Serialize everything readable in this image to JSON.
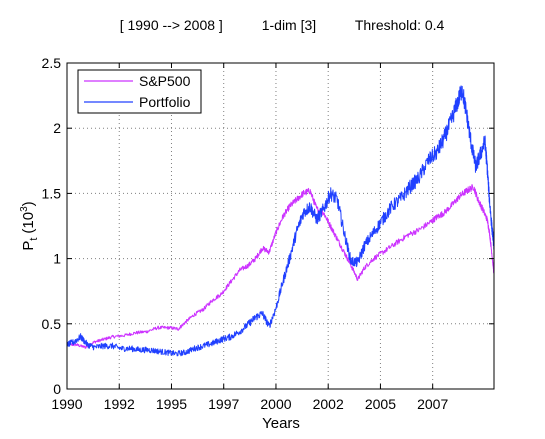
{
  "chart_data": {
    "type": "line",
    "title": "[ 1990 --> 2008 ]          1-dim [3]          Threshold: 0.4",
    "xlabel": "Years",
    "ylabel_main": "P",
    "ylabel_sub": "t",
    "ylabel_paren": "(10",
    "ylabel_sup": "3",
    "ylabel_close": ")",
    "xlim": [
      1990,
      2008.8
    ],
    "ylim": [
      0,
      2.5
    ],
    "xticks": [
      1990,
      1992.3,
      1994.6,
      1996.9,
      1999.2,
      2001.5,
      2003.8,
      2006.1
    ],
    "xtick_labels": [
      "1990",
      "1992",
      "1995",
      "1997",
      "2000",
      "2002",
      "2005",
      "2007"
    ],
    "yticks": [
      0,
      0.5,
      1,
      1.5,
      2,
      2.5
    ],
    "ytick_labels": [
      "0",
      "0.5",
      "1",
      "1.5",
      "2",
      "2.5"
    ],
    "grid": true,
    "legend": "top-left",
    "series": [
      {
        "name": "S&P500",
        "color": "#cc33ff",
        "x": [
          1990,
          1990.4,
          1990.8,
          1991.2,
          1991.6,
          1992,
          1992.5,
          1993,
          1993.5,
          1994,
          1994.5,
          1994.9,
          1995.2,
          1995.6,
          1996,
          1996.4,
          1996.8,
          1997.2,
          1997.6,
          1998,
          1998.3,
          1998.6,
          1998.9,
          1999.2,
          1999.5,
          1999.8,
          2000.1,
          2000.4,
          2000.7,
          2001,
          2001.3,
          2001.6,
          2001.9,
          2002.2,
          2002.5,
          2002.8,
          2003.1,
          2003.5,
          2004,
          2004.5,
          2005,
          2005.5,
          2006,
          2006.3,
          2006.6,
          2007,
          2007.3,
          2007.6,
          2007.9,
          2008.1,
          2008.3,
          2008.5,
          2008.6,
          2008.7,
          2008.8
        ],
        "values": [
          0.34,
          0.34,
          0.32,
          0.36,
          0.38,
          0.4,
          0.41,
          0.43,
          0.44,
          0.47,
          0.47,
          0.46,
          0.51,
          0.57,
          0.61,
          0.68,
          0.73,
          0.82,
          0.91,
          0.95,
          1.0,
          1.08,
          1.05,
          1.2,
          1.32,
          1.4,
          1.45,
          1.5,
          1.52,
          1.38,
          1.35,
          1.25,
          1.15,
          1.05,
          0.95,
          0.84,
          0.93,
          1.0,
          1.06,
          1.12,
          1.18,
          1.22,
          1.28,
          1.32,
          1.35,
          1.42,
          1.48,
          1.52,
          1.55,
          1.45,
          1.38,
          1.3,
          1.2,
          1.05,
          0.88
        ]
      },
      {
        "name": "Portfolio",
        "color": "#2040ff",
        "x": [
          1990,
          1990.3,
          1990.6,
          1990.9,
          1991.2,
          1991.6,
          1992,
          1992.4,
          1992.8,
          1993.2,
          1993.6,
          1994,
          1994.4,
          1994.8,
          1995.2,
          1995.6,
          1996,
          1996.4,
          1996.8,
          1997.2,
          1997.6,
          1998,
          1998.3,
          1998.6,
          1998.9,
          1999.2,
          1999.5,
          1999.8,
          2000.1,
          2000.4,
          2000.7,
          2001,
          2001.3,
          2001.6,
          2001.9,
          2002.2,
          2002.5,
          2002.8,
          2003.1,
          2003.5,
          2003.9,
          2004.3,
          2004.7,
          2005.1,
          2005.5,
          2005.9,
          2006.3,
          2006.6,
          2006.9,
          2007.2,
          2007.4,
          2007.6,
          2007.8,
          2008,
          2008.2,
          2008.4,
          2008.5,
          2008.6,
          2008.7,
          2008.8
        ],
        "values": [
          0.34,
          0.36,
          0.4,
          0.34,
          0.32,
          0.33,
          0.33,
          0.31,
          0.31,
          0.3,
          0.3,
          0.29,
          0.28,
          0.27,
          0.28,
          0.31,
          0.33,
          0.35,
          0.38,
          0.4,
          0.44,
          0.5,
          0.55,
          0.58,
          0.48,
          0.62,
          0.82,
          1.0,
          1.2,
          1.35,
          1.4,
          1.3,
          1.38,
          1.5,
          1.45,
          1.2,
          0.98,
          0.97,
          1.1,
          1.2,
          1.3,
          1.4,
          1.46,
          1.55,
          1.62,
          1.75,
          1.82,
          1.92,
          2.05,
          2.2,
          2.3,
          2.1,
          1.88,
          1.7,
          1.8,
          1.9,
          1.7,
          1.45,
          1.25,
          1.1
        ]
      }
    ]
  }
}
